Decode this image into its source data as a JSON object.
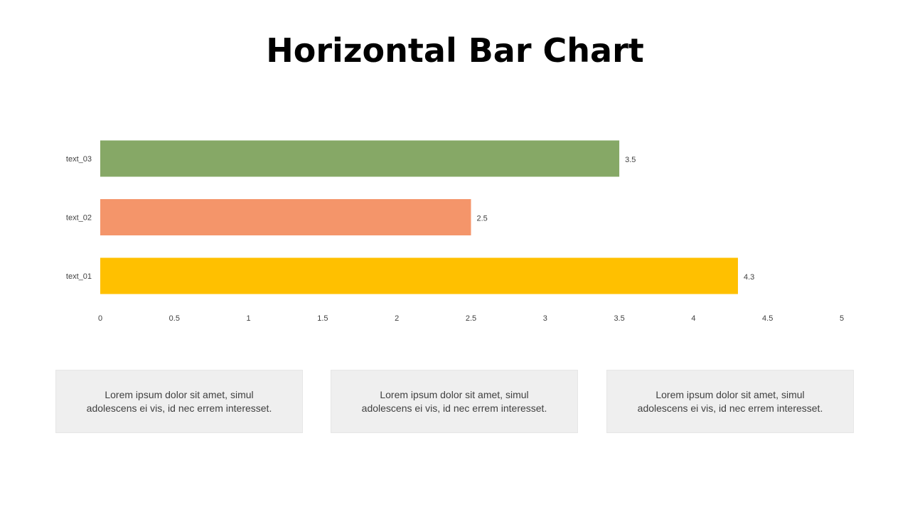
{
  "title": "Horizontal Bar Chart",
  "chart_data": {
    "type": "bar",
    "orientation": "horizontal",
    "title": "",
    "categories": [
      "text_01",
      "text_02",
      "text_03"
    ],
    "values": [
      4.3,
      2.5,
      3.5
    ],
    "colors": [
      "#FFC000",
      "#F4956A",
      "#86A866"
    ],
    "value_labels": [
      "4.3",
      "2.5",
      "3.5"
    ],
    "xlim": [
      0,
      5
    ],
    "x_ticks": [
      0,
      0.5,
      1,
      1.5,
      2,
      2.5,
      3,
      3.5,
      4,
      4.5,
      5
    ],
    "x_tick_labels": [
      "0",
      "0.5",
      "1",
      "1.5",
      "2",
      "2.5",
      "3",
      "3.5",
      "4",
      "4.5",
      "5"
    ],
    "grid": false,
    "legend": "none"
  },
  "text_boxes": [
    {
      "line1": "Lorem ipsum dolor sit amet, simul",
      "line2": "adolescens ei vis, id nec errem interesset."
    },
    {
      "line1": "Lorem ipsum dolor sit amet, simul",
      "line2": "adolescens ei vis, id nec errem interesset."
    },
    {
      "line1": "Lorem ipsum dolor sit amet, simul",
      "line2": "adolescens ei vis, id nec errem interesset."
    }
  ]
}
